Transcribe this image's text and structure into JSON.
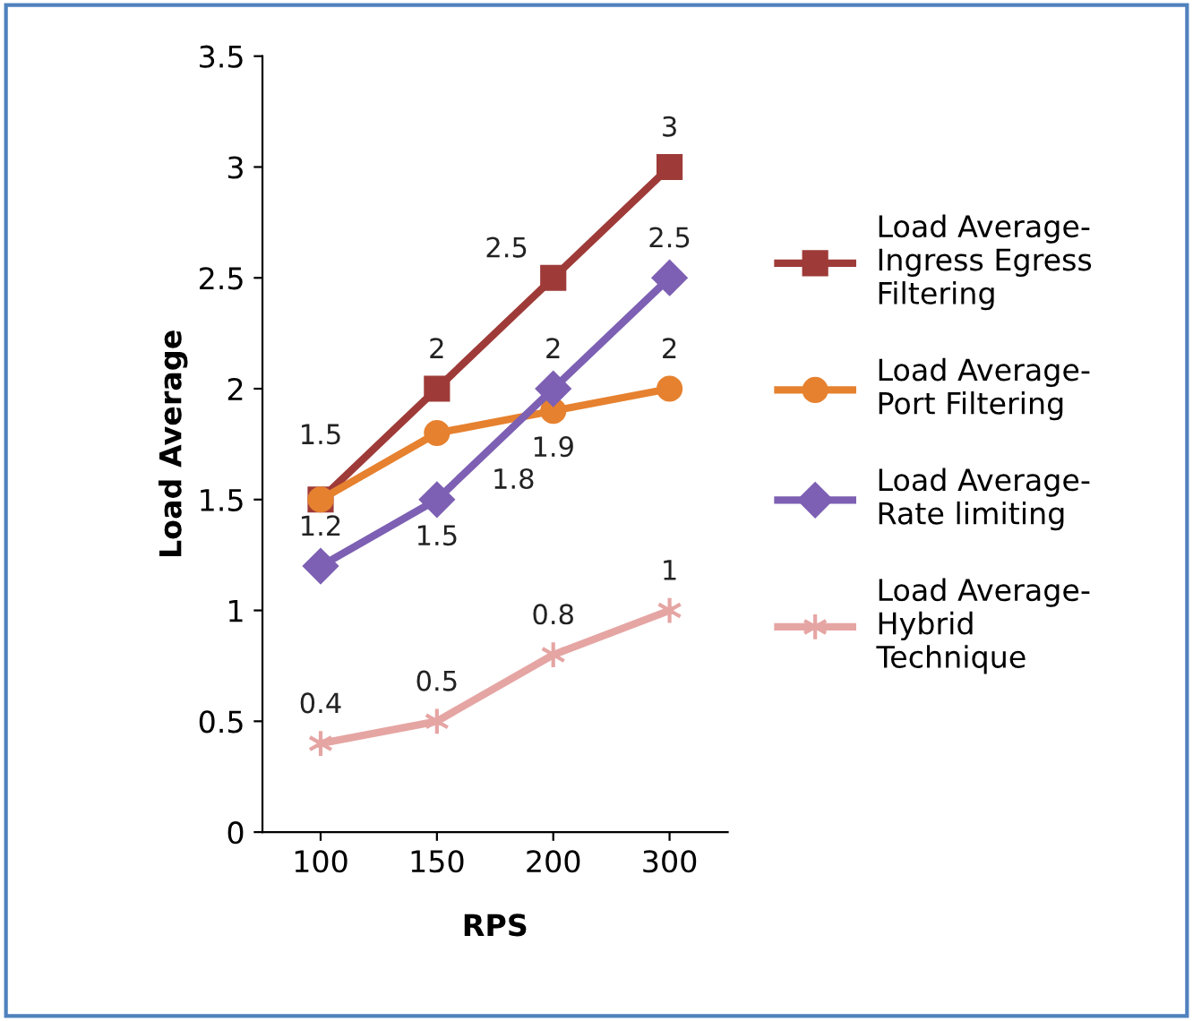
{
  "chart_data": {
    "type": "line",
    "xlabel": "RPS",
    "ylabel": "Load Average",
    "categories": [
      "100",
      "150",
      "200",
      "300"
    ],
    "series": [
      {
        "name": "Load Average-\nIngress Egress\nFiltering",
        "color": "#9e3b38",
        "marker": "square",
        "values": [
          1.5,
          2,
          2.5,
          3
        ],
        "value_labels": [
          "1.5",
          "2",
          "2.5",
          "3"
        ]
      },
      {
        "name": "Load Average-\nPort Filtering",
        "color": "#e6812f",
        "marker": "circle",
        "values": [
          1.5,
          1.8,
          1.9,
          2
        ],
        "value_labels": [
          null,
          "1.8",
          "1.9",
          "2"
        ]
      },
      {
        "name": "Load Average-\nRate limiting",
        "color": "#7d60b3",
        "marker": "diamond",
        "values": [
          1.2,
          1.5,
          2,
          2.5
        ],
        "value_labels": [
          "1.2",
          "1.5",
          "2",
          "2.5"
        ]
      },
      {
        "name": "Load Average-\nHybrid\nTechnique",
        "color": "#e5a5a3",
        "marker": "cross",
        "values": [
          0.4,
          0.5,
          0.8,
          1
        ],
        "value_labels": [
          "0.4",
          "0.5",
          "0.8",
          "1"
        ]
      }
    ],
    "ylim": [
      0,
      3.5
    ],
    "yticks": [
      0,
      0.5,
      1,
      1.5,
      2,
      2.5,
      3,
      3.5
    ],
    "grid": false,
    "legend": "right"
  }
}
